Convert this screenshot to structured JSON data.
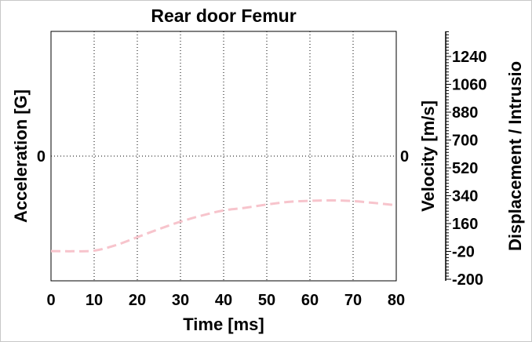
{
  "chart_data": {
    "type": "line",
    "title": "Rear door Femur",
    "xlabel": "Time [ms]",
    "ylabel_left": "Acceleration [G]",
    "ylabel_right_1": "Velocity [m/s]",
    "ylabel_right_2": "Displacement / Intrusio",
    "xlim": [
      0,
      80
    ],
    "x_ticks": [
      0,
      10,
      20,
      30,
      40,
      50,
      60,
      70,
      80
    ],
    "left_ticks": [
      0
    ],
    "velocity_ticks": [
      0
    ],
    "displacement_ticks": [
      1240,
      1060,
      880,
      700,
      520,
      340,
      160,
      -20,
      -200
    ],
    "displacement_lim": [
      -200,
      1420
    ],
    "grid": true,
    "series": [
      {
        "line_style": "dashed",
        "color": "#f7c4cc",
        "axis": "displacement",
        "x": [
          0,
          5,
          10,
          15,
          20,
          25,
          30,
          35,
          40,
          45,
          50,
          55,
          60,
          65,
          70,
          75,
          80
        ],
        "y": [
          -18,
          -19,
          -15,
          20,
          72,
          124,
          172,
          212,
          245,
          262,
          283,
          300,
          307,
          310,
          305,
          293,
          278
        ]
      }
    ]
  }
}
